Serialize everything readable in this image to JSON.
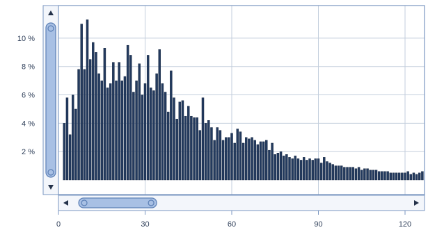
{
  "colors": {
    "bar_fill": "#233a5e",
    "bar_stroke": "#0f1f38",
    "grid": "#c3cedc",
    "frame": "#7a96c0",
    "scroll_track": "#f3f6fb",
    "scroll_thumb": "#a8c0e4",
    "scroll_thumb_edge": "#5b7fb5",
    "arrow": "#24324a",
    "tick_text": "#30405a"
  },
  "scrollbars": {
    "vertical": {
      "up_arrow_icon": "triangle-up",
      "down_arrow_icon": "triangle-down",
      "thumb_start": 0.0,
      "thumb_end": 1.0
    },
    "horizontal": {
      "left_arrow_icon": "triangle-left",
      "right_arrow_icon": "triangle-right",
      "thumb_start_value": 7,
      "thumb_end_value": 34
    }
  },
  "chart_data": {
    "type": "bar",
    "title": "",
    "xlabel": "",
    "ylabel": "",
    "xlim": [
      0,
      127
    ],
    "ylim": [
      0,
      12.3
    ],
    "grid": true,
    "legend": "none",
    "x_ticks": [
      0,
      30,
      60,
      90,
      120
    ],
    "x_tick_labels": [
      "0",
      "30",
      "60",
      "90",
      "120"
    ],
    "y_ticks": [
      2,
      4,
      6,
      8,
      10
    ],
    "y_tick_labels": [
      "2 %",
      "4 %",
      "6 %",
      "8 %",
      "10 %"
    ],
    "x": [
      2,
      3,
      4,
      5,
      6,
      7,
      8,
      9,
      10,
      11,
      12,
      13,
      14,
      15,
      16,
      17,
      18,
      19,
      20,
      21,
      22,
      23,
      24,
      25,
      26,
      27,
      28,
      29,
      30,
      31,
      32,
      33,
      34,
      35,
      36,
      37,
      38,
      39,
      40,
      41,
      42,
      43,
      44,
      45,
      46,
      47,
      48,
      49,
      50,
      51,
      52,
      53,
      54,
      55,
      56,
      57,
      58,
      59,
      60,
      61,
      62,
      63,
      64,
      65,
      66,
      67,
      68,
      69,
      70,
      71,
      72,
      73,
      74,
      75,
      76,
      77,
      78,
      79,
      80,
      81,
      82,
      83,
      84,
      85,
      86,
      87,
      88,
      89,
      90,
      91,
      92,
      93,
      94,
      95,
      96,
      97,
      98,
      99,
      100,
      101,
      102,
      103,
      104,
      105,
      106,
      107,
      108,
      109,
      110,
      111,
      112,
      113,
      114,
      115,
      116,
      117,
      118,
      119,
      120,
      121,
      122,
      123,
      124,
      125,
      126
    ],
    "values": [
      4.0,
      5.8,
      3.2,
      6.0,
      5.0,
      7.8,
      11.0,
      7.8,
      11.3,
      8.5,
      9.7,
      9.0,
      7.5,
      7.0,
      9.3,
      6.5,
      6.8,
      8.3,
      7.0,
      8.3,
      7.0,
      7.3,
      9.5,
      8.8,
      6.2,
      7.0,
      8.2,
      6.0,
      6.8,
      8.8,
      6.5,
      6.3,
      7.5,
      9.2,
      6.8,
      6.2,
      4.8,
      7.7,
      5.8,
      4.3,
      5.5,
      5.6,
      4.5,
      5.2,
      4.5,
      4.4,
      4.4,
      3.5,
      5.8,
      4.0,
      4.2,
      3.7,
      2.8,
      3.7,
      3.5,
      2.8,
      3.0,
      3.0,
      3.3,
      2.6,
      3.6,
      3.4,
      2.6,
      3.0,
      2.9,
      3.0,
      2.8,
      2.5,
      2.7,
      2.7,
      2.8,
      2.1,
      2.6,
      1.8,
      1.9,
      2.0,
      1.7,
      1.8,
      1.6,
      1.5,
      1.7,
      1.5,
      1.4,
      1.6,
      1.4,
      1.5,
      1.4,
      1.5,
      1.5,
      1.2,
      1.6,
      1.3,
      1.2,
      1.1,
      1.0,
      1.0,
      1.0,
      0.9,
      0.9,
      0.9,
      0.9,
      0.8,
      0.9,
      0.7,
      0.8,
      0.8,
      0.7,
      0.7,
      0.7,
      0.6,
      0.6,
      0.6,
      0.6,
      0.5,
      0.5,
      0.5,
      0.5,
      0.5,
      0.5,
      0.6,
      0.4,
      0.5,
      0.4,
      0.5,
      0.6
    ]
  }
}
